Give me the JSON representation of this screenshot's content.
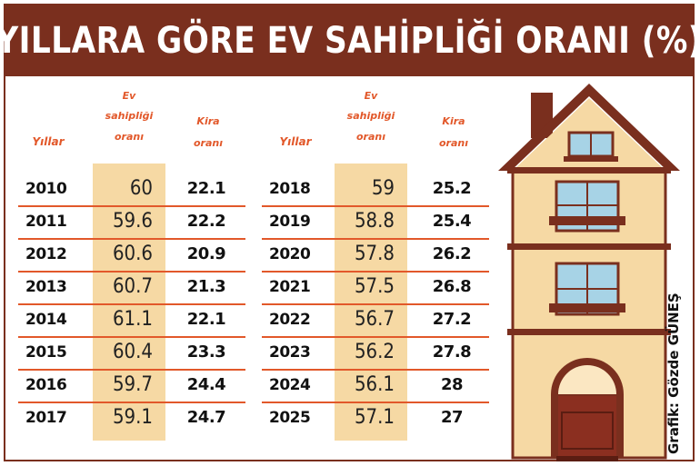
{
  "title": "YILLARA GÖRE EV SAHİPLİĞİ ORANI (%)",
  "headers": {
    "year": "Yıllar",
    "rate_line1": "Ev",
    "rate_line2": "sahipliği",
    "rate_line3": "oranı",
    "age_line1": "Kira",
    "age_line2": "oranı"
  },
  "credit": "Grafik: Gözde GÜNEŞ",
  "colors": {
    "brand": "#7a2f1e",
    "accent": "#e2582a",
    "highlight": "#f6d9a4"
  },
  "chart_data": {
    "type": "table",
    "title": "YILLARA GÖRE EV SAHİPLİĞİ ORANI (%)",
    "columns": [
      "Yıllar",
      "Ev sahipliği oranı",
      "Kira oranı"
    ],
    "left": [
      {
        "year": "2010",
        "rate": "60",
        "rent": "22.1"
      },
      {
        "year": "2011",
        "rate": "59.6",
        "rent": "22.2"
      },
      {
        "year": "2012",
        "rate": "60.6",
        "rent": "20.9"
      },
      {
        "year": "2013",
        "rate": "60.7",
        "rent": "21.3"
      },
      {
        "year": "2014",
        "rate": "61.1",
        "rent": "22.1"
      },
      {
        "year": "2015",
        "rate": "60.4",
        "rent": "23.3"
      },
      {
        "year": "2016",
        "rate": "59.7",
        "rent": "24.4"
      },
      {
        "year": "2017",
        "rate": "59.1",
        "rent": "24.7"
      }
    ],
    "right": [
      {
        "year": "2018",
        "rate": "59",
        "rent": "25.2"
      },
      {
        "year": "2019",
        "rate": "58.8",
        "rent": "25.4"
      },
      {
        "year": "2020",
        "rate": "57.8",
        "rent": "26.2"
      },
      {
        "year": "2021",
        "rate": "57.5",
        "rent": "26.8"
      },
      {
        "year": "2022",
        "rate": "56.7",
        "rent": "27.2"
      },
      {
        "year": "2023",
        "rate": "56.2",
        "rent": "27.8"
      },
      {
        "year": "2024",
        "rate": "56.1",
        "rent": "28"
      },
      {
        "year": "2025",
        "rate": "57.1",
        "rent": "27"
      }
    ]
  }
}
